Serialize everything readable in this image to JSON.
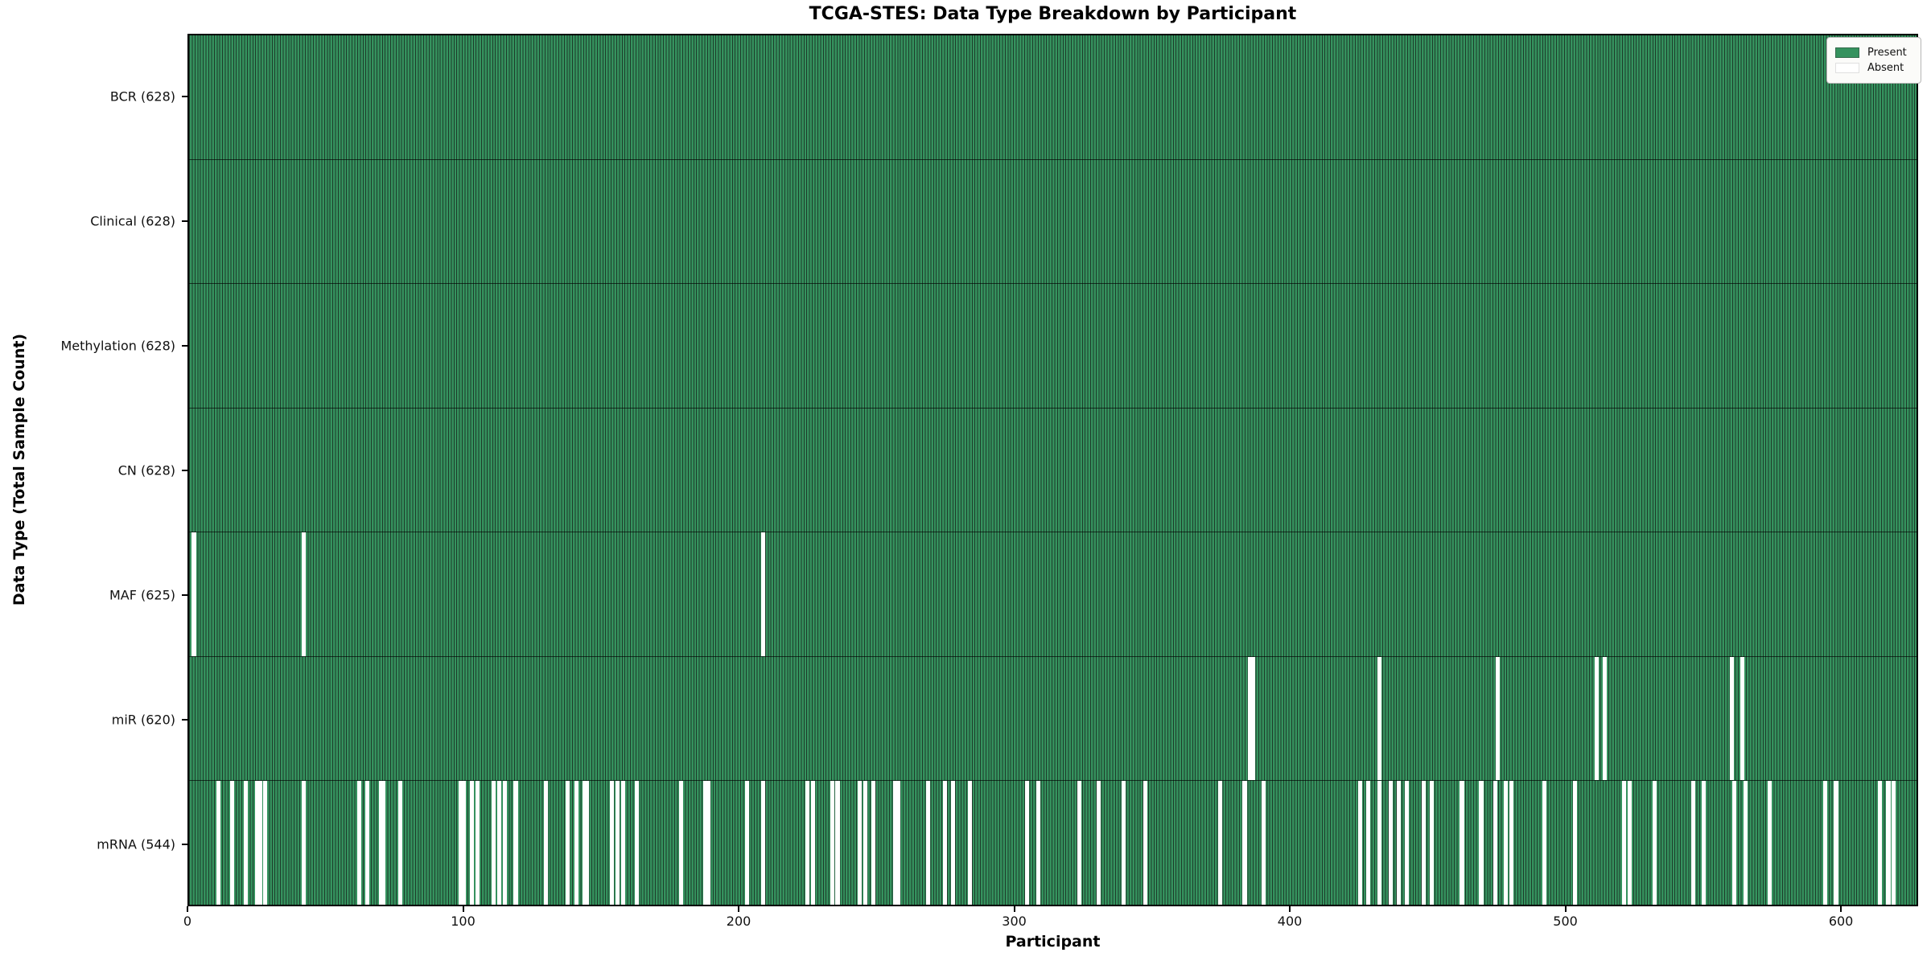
{
  "title": "TCGA-STES: Data Type Breakdown by Participant",
  "xlabel": "Participant",
  "ylabel": "Data Type (Total Sample Count)",
  "legend": {
    "present_label": "Present",
    "absent_label": "Absent"
  },
  "colors": {
    "present": "#35925e",
    "bar_edge": "#1d3b2a",
    "absent": "#ffffff",
    "row_divider": "rgba(0,0,0,0.65)",
    "spine": "#000000",
    "legend_bg": "#fbfbf9",
    "legend_border": "#b7b7b7"
  },
  "chart_data": {
    "type": "heatmap",
    "title": "TCGA-STES: Data Type Breakdown by Participant",
    "xlabel": "Participant",
    "ylabel": "Data Type (Total Sample Count)",
    "n_participants": 628,
    "x_ticks": [
      0,
      100,
      200,
      300,
      400,
      500,
      600
    ],
    "legend_entries": [
      "Present",
      "Absent"
    ],
    "legend_position": "upper right",
    "rows": [
      {
        "name": "BCR",
        "label": "BCR (628)",
        "present_count": 628,
        "absent": []
      },
      {
        "name": "Clinical",
        "label": "Clinical (628)",
        "present_count": 628,
        "absent": []
      },
      {
        "name": "Methylation",
        "label": "Methylation (628)",
        "present_count": 628,
        "absent": []
      },
      {
        "name": "CN",
        "label": "CN (628)",
        "present_count": 628,
        "absent": []
      },
      {
        "name": "MAF",
        "label": "MAF (625)",
        "present_count": 625,
        "absent": [
          1,
          41,
          208
        ]
      },
      {
        "name": "miR",
        "label": "miR (620)",
        "present_count": 620,
        "absent": [
          385,
          386,
          432,
          475,
          511,
          514,
          560,
          564
        ]
      },
      {
        "name": "mRNA",
        "label": "mRNA (544)",
        "present_count": 544,
        "absent": [
          10,
          15,
          20,
          24,
          25,
          27,
          41,
          61,
          64,
          69,
          70,
          76,
          98,
          99,
          102,
          104,
          110,
          112,
          114,
          118,
          129,
          137,
          140,
          143,
          144,
          153,
          155,
          157,
          162,
          178,
          187,
          188,
          202,
          208,
          224,
          226,
          233,
          235,
          243,
          245,
          248,
          256,
          257,
          268,
          274,
          277,
          283,
          304,
          308,
          323,
          330,
          339,
          347,
          374,
          383,
          390,
          425,
          428,
          432,
          436,
          439,
          442,
          448,
          451,
          462,
          469,
          474,
          478,
          480,
          492,
          503,
          521,
          523,
          532,
          546,
          550,
          561,
          565,
          574,
          594,
          598,
          614,
          617,
          619
        ]
      }
    ]
  }
}
